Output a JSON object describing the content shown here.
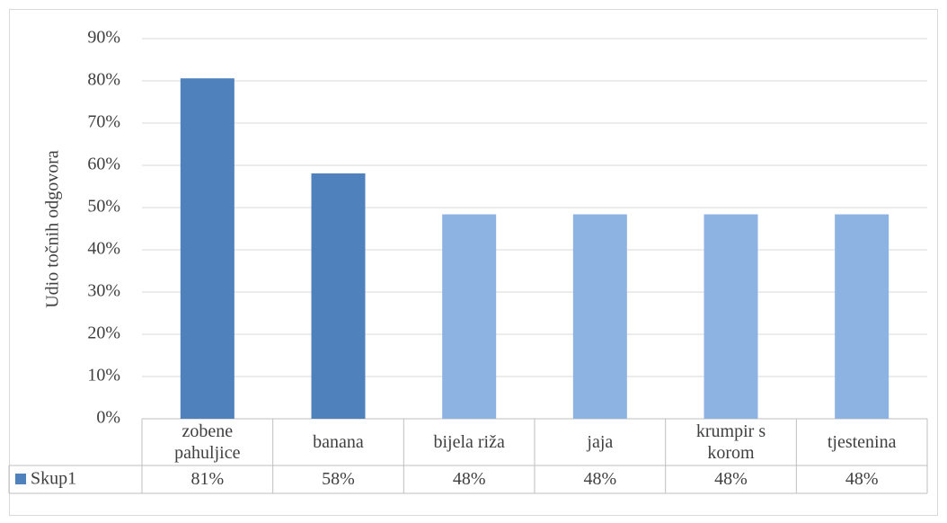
{
  "chart_data": {
    "type": "bar",
    "y_label": "Udio točnih odgovora",
    "categories": [
      "zobene pahuljice",
      "banana",
      "bijela riža",
      "jaja",
      "krumpir s korom",
      "tjestenina"
    ],
    "series": [
      {
        "name": "Skup1",
        "color": "#4f81bd",
        "colors": [
          "#4f81bd",
          "#4f81bd",
          "#8db3e2",
          "#8db3e2",
          "#8db3e2",
          "#8db3e2"
        ],
        "values": [
          80.6,
          58.1,
          48.4,
          48.4,
          48.4,
          48.4
        ],
        "value_labels": [
          "81%",
          "58%",
          "48%",
          "48%",
          "48%",
          "48%"
        ]
      }
    ],
    "ylim": [
      0,
      90
    ],
    "yticks": [
      {
        "value": 0,
        "label": "0%"
      },
      {
        "value": 10,
        "label": "10%"
      },
      {
        "value": 20,
        "label": "20%"
      },
      {
        "value": 30,
        "label": "30%"
      },
      {
        "value": 40,
        "label": "40%"
      },
      {
        "value": 50,
        "label": "50%"
      },
      {
        "value": 60,
        "label": "60%"
      },
      {
        "value": 70,
        "label": "70%"
      },
      {
        "value": 80,
        "label": "80%"
      },
      {
        "value": 90,
        "label": "90%"
      }
    ],
    "grid": true
  }
}
